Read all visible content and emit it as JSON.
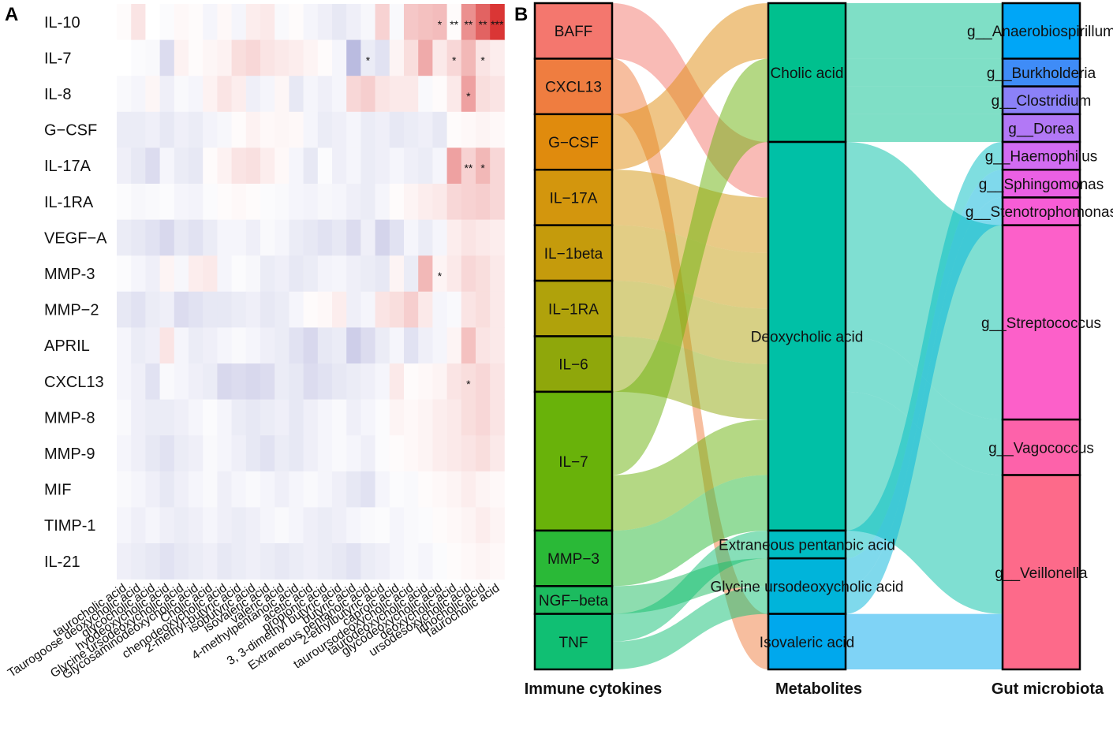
{
  "panels": {
    "a_label": "A",
    "b_label": "B"
  },
  "colors": {
    "positive": "#d6201f",
    "negative": "#3a3ca6",
    "neutral": "#ffffff"
  },
  "chart_data": [
    {
      "type": "heatmap",
      "panel": "A",
      "title": "",
      "rows": [
        "IL-10",
        "IL-7",
        "IL-8",
        "G−CSF",
        "IL-17A",
        "IL-1RA",
        "VEGF−A",
        "MMP-3",
        "MMP−2",
        "APRIL",
        "CXCL13",
        "MMP-8",
        "MMP-9",
        "MIF",
        "TIMP-1",
        "IL-21"
      ],
      "columns": [
        "taurocholic acid",
        "Taurogoose deoxycholic acid",
        "glycocholic acid",
        "hyodeoxycholic acid",
        "Glycine ursodeoxycholic acid",
        "Glycosaminodeoxycholic acid",
        "Cholic acid",
        "chenodeoxycholic acid",
        "2-methyl-butyric acid",
        "isobutyric acid",
        "isovaleric acid",
        "valeric acid",
        "4-methylpentanoic acid",
        "acetic acid",
        "propionic acid",
        "3, 3-dimethyl butyric acid",
        "butyric acid",
        "Extraneous pentanoic acid",
        "2-ethylbutyric acid",
        "caproic acid",
        "tauroursodeoxycholic acid",
        "taurodeoxycholic acid",
        "glycodeoxycholic acid",
        "deoxycholic acid",
        "ursodesoxycholic acid",
        "lithocholic acid",
        "Taurocholic acid"
      ],
      "values": [
        [
          0.02,
          0.12,
          0.0,
          -0.02,
          0.03,
          0.02,
          -0.05,
          0.03,
          -0.05,
          0.08,
          0.1,
          -0.03,
          0.02,
          -0.05,
          -0.08,
          -0.12,
          -0.08,
          -0.04,
          0.2,
          -0.03,
          0.25,
          0.28,
          0.3,
          0.02,
          0.5,
          0.7,
          0.9
        ],
        [
          0.0,
          -0.02,
          -0.03,
          -0.18,
          0.06,
          0.02,
          0.04,
          0.06,
          0.15,
          0.18,
          0.12,
          0.1,
          0.08,
          0.05,
          0.02,
          -0.05,
          -0.35,
          -0.1,
          -0.15,
          0.05,
          0.15,
          0.38,
          0.1,
          0.18,
          0.32,
          0.12,
          0.08
        ],
        [
          -0.03,
          -0.05,
          0.04,
          -0.08,
          -0.03,
          -0.05,
          0.06,
          0.12,
          0.08,
          -0.08,
          -0.05,
          0.04,
          -0.12,
          -0.05,
          -0.08,
          -0.05,
          0.18,
          0.22,
          0.12,
          0.1,
          0.1,
          -0.03,
          0.02,
          0.1,
          0.42,
          0.15,
          0.12
        ],
        [
          -0.1,
          -0.1,
          -0.08,
          -0.12,
          -0.08,
          -0.1,
          -0.06,
          -0.04,
          0.02,
          0.06,
          0.03,
          0.04,
          0.03,
          -0.05,
          -0.1,
          -0.08,
          -0.05,
          -0.1,
          -0.08,
          -0.12,
          -0.1,
          -0.08,
          -0.12,
          0.02,
          0.03,
          0.05,
          0.03
        ],
        [
          -0.08,
          -0.12,
          -0.18,
          -0.05,
          -0.1,
          -0.12,
          0.02,
          0.06,
          0.12,
          0.14,
          0.08,
          0.03,
          -0.05,
          -0.12,
          -0.02,
          -0.08,
          -0.05,
          -0.1,
          -0.08,
          -0.05,
          -0.08,
          -0.1,
          -0.05,
          0.42,
          0.2,
          0.32,
          0.18
        ],
        [
          -0.02,
          -0.04,
          -0.03,
          -0.02,
          -0.05,
          -0.06,
          -0.02,
          0.02,
          0.03,
          0.02,
          -0.02,
          -0.03,
          -0.05,
          -0.06,
          -0.04,
          -0.05,
          -0.08,
          -0.1,
          -0.05,
          0.02,
          0.05,
          0.08,
          0.1,
          0.18,
          0.2,
          0.22,
          0.18
        ],
        [
          -0.1,
          -0.12,
          -0.15,
          -0.2,
          -0.12,
          -0.15,
          -0.1,
          -0.05,
          -0.05,
          -0.08,
          -0.03,
          -0.05,
          -0.1,
          -0.12,
          -0.15,
          -0.12,
          -0.18,
          -0.08,
          -0.22,
          -0.15,
          -0.05,
          -0.1,
          -0.05,
          0.08,
          0.12,
          0.1,
          0.08
        ],
        [
          -0.02,
          -0.05,
          -0.08,
          0.05,
          -0.04,
          0.08,
          0.1,
          -0.05,
          -0.02,
          -0.04,
          -0.1,
          -0.08,
          -0.12,
          -0.1,
          -0.06,
          -0.05,
          -0.08,
          -0.1,
          -0.12,
          0.05,
          -0.1,
          0.32,
          0.05,
          0.1,
          0.18,
          0.15,
          0.1
        ],
        [
          -0.12,
          -0.15,
          -0.1,
          -0.08,
          -0.18,
          -0.15,
          -0.12,
          -0.12,
          -0.1,
          -0.08,
          -0.12,
          -0.1,
          -0.05,
          0.02,
          0.03,
          0.08,
          -0.08,
          -0.05,
          0.12,
          0.15,
          0.22,
          0.1,
          -0.05,
          -0.03,
          0.12,
          0.15,
          0.1
        ],
        [
          -0.05,
          -0.1,
          -0.08,
          0.12,
          -0.05,
          -0.1,
          -0.08,
          -0.05,
          -0.03,
          -0.05,
          -0.08,
          -0.1,
          -0.15,
          -0.2,
          -0.12,
          -0.1,
          -0.25,
          -0.18,
          -0.1,
          -0.05,
          -0.15,
          -0.08,
          -0.05,
          0.05,
          0.28,
          0.12,
          0.1
        ],
        [
          -0.05,
          -0.08,
          -0.15,
          -0.03,
          -0.05,
          -0.08,
          -0.1,
          -0.2,
          -0.18,
          -0.2,
          -0.18,
          -0.1,
          -0.12,
          -0.18,
          -0.15,
          -0.12,
          -0.1,
          -0.08,
          -0.05,
          0.1,
          0.02,
          0.03,
          0.05,
          0.12,
          0.15,
          0.18,
          0.12
        ],
        [
          -0.03,
          -0.08,
          -0.1,
          -0.1,
          -0.08,
          -0.05,
          -0.02,
          -0.05,
          -0.1,
          -0.12,
          -0.1,
          -0.08,
          -0.12,
          -0.08,
          -0.05,
          -0.03,
          -0.08,
          -0.05,
          -0.02,
          0.05,
          0.03,
          0.05,
          0.08,
          0.1,
          0.15,
          0.18,
          0.12
        ],
        [
          -0.05,
          -0.08,
          -0.12,
          -0.15,
          -0.1,
          -0.08,
          -0.03,
          -0.05,
          -0.08,
          -0.12,
          -0.15,
          -0.1,
          -0.12,
          -0.08,
          -0.05,
          -0.03,
          -0.05,
          -0.08,
          -0.02,
          0.02,
          0.03,
          0.05,
          0.08,
          0.1,
          0.12,
          0.15,
          0.1
        ],
        [
          -0.03,
          -0.05,
          -0.08,
          -0.12,
          -0.08,
          -0.05,
          -0.03,
          -0.08,
          -0.05,
          -0.03,
          -0.05,
          -0.08,
          -0.05,
          -0.03,
          -0.05,
          -0.08,
          -0.12,
          -0.15,
          -0.05,
          -0.02,
          -0.03,
          0.02,
          0.03,
          0.05,
          0.08,
          0.05,
          0.03
        ],
        [
          -0.05,
          -0.08,
          -0.05,
          -0.08,
          -0.1,
          -0.08,
          -0.05,
          -0.08,
          -0.1,
          -0.08,
          -0.05,
          -0.03,
          -0.05,
          -0.08,
          -0.1,
          -0.08,
          -0.05,
          -0.03,
          -0.02,
          -0.05,
          -0.03,
          -0.02,
          0.02,
          0.03,
          0.05,
          0.08,
          0.05
        ],
        [
          -0.08,
          -0.1,
          -0.12,
          -0.15,
          -0.12,
          -0.1,
          -0.08,
          -0.12,
          -0.1,
          -0.08,
          -0.1,
          -0.12,
          -0.1,
          -0.08,
          -0.1,
          -0.12,
          -0.15,
          -0.1,
          -0.08,
          -0.05,
          -0.03,
          -0.05,
          -0.02,
          0.02,
          0.03,
          0.05,
          0.03
        ]
      ],
      "significance": [
        {
          "row": 0,
          "col": 22,
          "label": "*"
        },
        {
          "row": 0,
          "col": 23,
          "label": "**"
        },
        {
          "row": 0,
          "col": 24,
          "label": "**"
        },
        {
          "row": 0,
          "col": 25,
          "label": "**"
        },
        {
          "row": 0,
          "col": 26,
          "label": "***"
        },
        {
          "row": 1,
          "col": 17,
          "label": "*"
        },
        {
          "row": 1,
          "col": 23,
          "label": "*"
        },
        {
          "row": 1,
          "col": 25,
          "label": "*"
        },
        {
          "row": 2,
          "col": 24,
          "label": "*"
        },
        {
          "row": 4,
          "col": 24,
          "label": "**"
        },
        {
          "row": 4,
          "col": 25,
          "label": "*"
        },
        {
          "row": 7,
          "col": 22,
          "label": "*"
        },
        {
          "row": 10,
          "col": 24,
          "label": "*"
        }
      ]
    },
    {
      "type": "sankey",
      "panel": "B",
      "axes": [
        "Immune cytokines",
        "Metabolites",
        "Gut microbiota"
      ],
      "cytokines": [
        {
          "name": "BAFF",
          "weight": 1,
          "color": "#f4776e"
        },
        {
          "name": "CXCL13",
          "weight": 1,
          "color": "#ef7d40"
        },
        {
          "name": "G−CSF",
          "weight": 1,
          "color": "#e08b0d"
        },
        {
          "name": "IL−17A",
          "weight": 1,
          "color": "#d3960d"
        },
        {
          "name": "IL−1beta",
          "weight": 1,
          "color": "#c59b0c"
        },
        {
          "name": "IL−1RA",
          "weight": 1,
          "color": "#b0a20b"
        },
        {
          "name": "IL−6",
          "weight": 1,
          "color": "#8fa70b"
        },
        {
          "name": "IL−7",
          "weight": 2.5,
          "color": "#69b20a"
        },
        {
          "name": "MMP−3",
          "weight": 1,
          "color": "#2ab937"
        },
        {
          "name": "NGF−beta",
          "weight": 0.5,
          "color": "#1cbb5f"
        },
        {
          "name": "TNF",
          "weight": 1,
          "color": "#10bf73"
        }
      ],
      "metabolites": [
        {
          "name": "Cholic acid",
          "weight": 2.5,
          "color": "#00c08e"
        },
        {
          "name": "Deoxycholic acid",
          "weight": 7,
          "color": "#00c0a6"
        },
        {
          "name": "Extraneous pentanoic acid",
          "weight": 0.5,
          "color": "#00bdc2"
        },
        {
          "name": "Glycine ursodeoxycholic acid",
          "weight": 1,
          "color": "#00b4da"
        },
        {
          "name": "Isovaleric acid",
          "weight": 1,
          "color": "#00a8ed"
        }
      ],
      "microbiota": [
        {
          "name": "g__Anaerobiospirillum",
          "weight": 1,
          "color": "#00a6f7"
        },
        {
          "name": "g__Burkholderia",
          "weight": 0.5,
          "color": "#3f8cf7"
        },
        {
          "name": "g__Clostridium",
          "weight": 0.5,
          "color": "#8b81f8"
        },
        {
          "name": "g__Dorea",
          "weight": 0.5,
          "color": "#b278f6"
        },
        {
          "name": "g__Haemophilus",
          "weight": 0.5,
          "color": "#d26cf2"
        },
        {
          "name": "g__Sphingomonas",
          "weight": 0.5,
          "color": "#ea60e4"
        },
        {
          "name": "g__Stenotrophomonas",
          "weight": 0.5,
          "color": "#f75dd6"
        },
        {
          "name": "g__Streptococcus",
          "weight": 3.5,
          "color": "#fc60c9"
        },
        {
          "name": "g__Vagococcus",
          "weight": 1,
          "color": "#fd62aa"
        },
        {
          "name": "g__Veillonella",
          "weight": 3.5,
          "color": "#fd6a8a"
        }
      ],
      "links_left": [
        {
          "source": "BAFF",
          "target": "Deoxycholic acid",
          "value": 1,
          "color": "#f4776e"
        },
        {
          "source": "CXCL13",
          "target": "Isovaleric acid",
          "value": 1,
          "color": "#ef7d40"
        },
        {
          "source": "G−CSF",
          "target": "Cholic acid",
          "value": 1,
          "color": "#e08b0d"
        },
        {
          "source": "IL−17A",
          "target": "Deoxycholic acid",
          "value": 1,
          "color": "#d3960d"
        },
        {
          "source": "IL−1beta",
          "target": "Deoxycholic acid",
          "value": 1,
          "color": "#c59b0c"
        },
        {
          "source": "IL−1RA",
          "target": "Deoxycholic acid",
          "value": 1,
          "color": "#b0a20b"
        },
        {
          "source": "IL−6",
          "target": "Deoxycholic acid",
          "value": 1,
          "color": "#8fa70b"
        },
        {
          "source": "IL−7",
          "target": "Cholic acid",
          "value": 1.5,
          "color": "#69b20a"
        },
        {
          "source": "IL−7",
          "target": "Deoxycholic acid",
          "value": 1,
          "color": "#69b20a"
        },
        {
          "source": "MMP−3",
          "target": "Deoxycholic acid",
          "value": 1,
          "color": "#2ab937"
        },
        {
          "source": "NGF−beta",
          "target": "Glycine ursodeoxycholic acid",
          "value": 0.5,
          "color": "#1cbb5f"
        },
        {
          "source": "TNF",
          "target": "Extraneous pentanoic acid",
          "value": 0.5,
          "color": "#10bf73"
        },
        {
          "source": "TNF",
          "target": "Glycine ursodeoxycholic acid",
          "value": 0.5,
          "color": "#10bf73"
        }
      ],
      "links_right": [
        {
          "source": "Cholic acid",
          "target": "g__Anaerobiospirillum",
          "value": 1
        },
        {
          "source": "Cholic acid",
          "target": "g__Burkholderia",
          "value": 0.5
        },
        {
          "source": "Cholic acid",
          "target": "g__Clostridium",
          "value": 0.5
        },
        {
          "source": "Cholic acid",
          "target": "g__Dorea",
          "value": 0.5
        },
        {
          "source": "Deoxycholic acid",
          "target": "g__Streptococcus",
          "value": 3.5
        },
        {
          "source": "Deoxycholic acid",
          "target": "g__Vagococcus",
          "value": 1
        },
        {
          "source": "Deoxycholic acid",
          "target": "g__Veillonella",
          "value": 2.5
        },
        {
          "source": "Extraneous pentanoic acid",
          "target": "g__Haemophilus",
          "value": 0.5
        },
        {
          "source": "Glycine ursodeoxycholic acid",
          "target": "g__Sphingomonas",
          "value": 0.5
        },
        {
          "source": "Glycine ursodeoxycholic acid",
          "target": "g__Stenotrophomonas",
          "value": 0.5
        },
        {
          "source": "Isovaleric acid",
          "target": "g__Veillonella",
          "value": 1
        }
      ]
    }
  ]
}
